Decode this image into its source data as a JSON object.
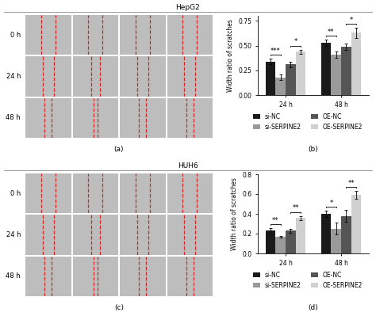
{
  "sections": [
    {
      "title": "HepG2",
      "image_panel": {
        "label": "(a)",
        "row_labels": [
          "0 h",
          "24 h",
          "48 h"
        ]
      },
      "chart_label": "(b)"
    },
    {
      "title": "HUH6",
      "image_panel": {
        "label": "(c)",
        "row_labels": [
          "0 h",
          "24 h",
          "48 h"
        ]
      },
      "chart_label": "(d)"
    }
  ],
  "chart_data": [
    {
      "type": "bar",
      "y_label": "Width ratio of scratches",
      "categories": [
        "24 h",
        "48 h"
      ],
      "ylim": [
        0,
        0.8
      ],
      "yticks": [
        {
          "value": 0,
          "label": "0.00"
        },
        {
          "value": 0.25,
          "label": "0.25"
        },
        {
          "value": 0.5,
          "label": "0.50"
        },
        {
          "value": 0.75,
          "label": "0.75"
        }
      ],
      "legend": "bottom",
      "series": [
        {
          "name": "si-NC",
          "color": "#1a1a1a",
          "values": [
            0.34,
            0.53
          ],
          "errors": [
            0.03,
            0.03
          ]
        },
        {
          "name": "si-SERPINE2",
          "color": "#9a9a9a",
          "values": [
            0.18,
            0.41
          ],
          "errors": [
            0.03,
            0.03
          ]
        },
        {
          "name": "OE-NC",
          "color": "#555555",
          "values": [
            0.31,
            0.49
          ],
          "errors": [
            0.03,
            0.03
          ]
        },
        {
          "name": "OE-SERPINE2",
          "color": "#d0d0d0",
          "values": [
            0.44,
            0.63
          ],
          "errors": [
            0.02,
            0.05
          ]
        }
      ],
      "annotations": [
        {
          "text": "***",
          "category": "24 h",
          "series": [
            "si-NC",
            "si-SERPINE2"
          ]
        },
        {
          "text": "*",
          "category": "24 h",
          "series": [
            "OE-NC",
            "OE-SERPINE2"
          ]
        },
        {
          "text": "**",
          "category": "48 h",
          "series": [
            "si-NC",
            "si-SERPINE2"
          ]
        },
        {
          "text": "*",
          "category": "48 h",
          "series": [
            "OE-NC",
            "OE-SERPINE2"
          ]
        }
      ]
    },
    {
      "type": "bar",
      "y_label": "Width ratio of scratches",
      "categories": [
        "24 h",
        "48 h"
      ],
      "ylim": [
        0,
        0.8
      ],
      "yticks": [
        {
          "value": 0,
          "label": "0.0"
        },
        {
          "value": 0.2,
          "label": "0.2"
        },
        {
          "value": 0.4,
          "label": "0.4"
        },
        {
          "value": 0.6,
          "label": "0.6"
        },
        {
          "value": 0.8,
          "label": "0.8"
        }
      ],
      "legend": "bottom",
      "series": [
        {
          "name": "si-NC",
          "color": "#1a1a1a",
          "values": [
            0.23,
            0.4
          ],
          "errors": [
            0.03,
            0.03
          ]
        },
        {
          "name": "si-SERPINE2",
          "color": "#9a9a9a",
          "values": [
            0.17,
            0.25
          ],
          "errors": [
            0.01,
            0.06
          ]
        },
        {
          "name": "OE-NC",
          "color": "#555555",
          "values": [
            0.23,
            0.38
          ],
          "errors": [
            0.02,
            0.06
          ]
        },
        {
          "name": "OE-SERPINE2",
          "color": "#d0d0d0",
          "values": [
            0.36,
            0.59
          ],
          "errors": [
            0.02,
            0.04
          ]
        }
      ],
      "annotations": [
        {
          "text": "**",
          "category": "24 h",
          "series": [
            "si-NC",
            "si-SERPINE2"
          ]
        },
        {
          "text": "**",
          "category": "24 h",
          "series": [
            "OE-NC",
            "OE-SERPINE2"
          ]
        },
        {
          "text": "*",
          "category": "48 h",
          "series": [
            "si-NC",
            "si-SERPINE2"
          ]
        },
        {
          "text": "**",
          "category": "48 h",
          "series": [
            "OE-NC",
            "OE-SERPINE2"
          ]
        }
      ]
    }
  ]
}
